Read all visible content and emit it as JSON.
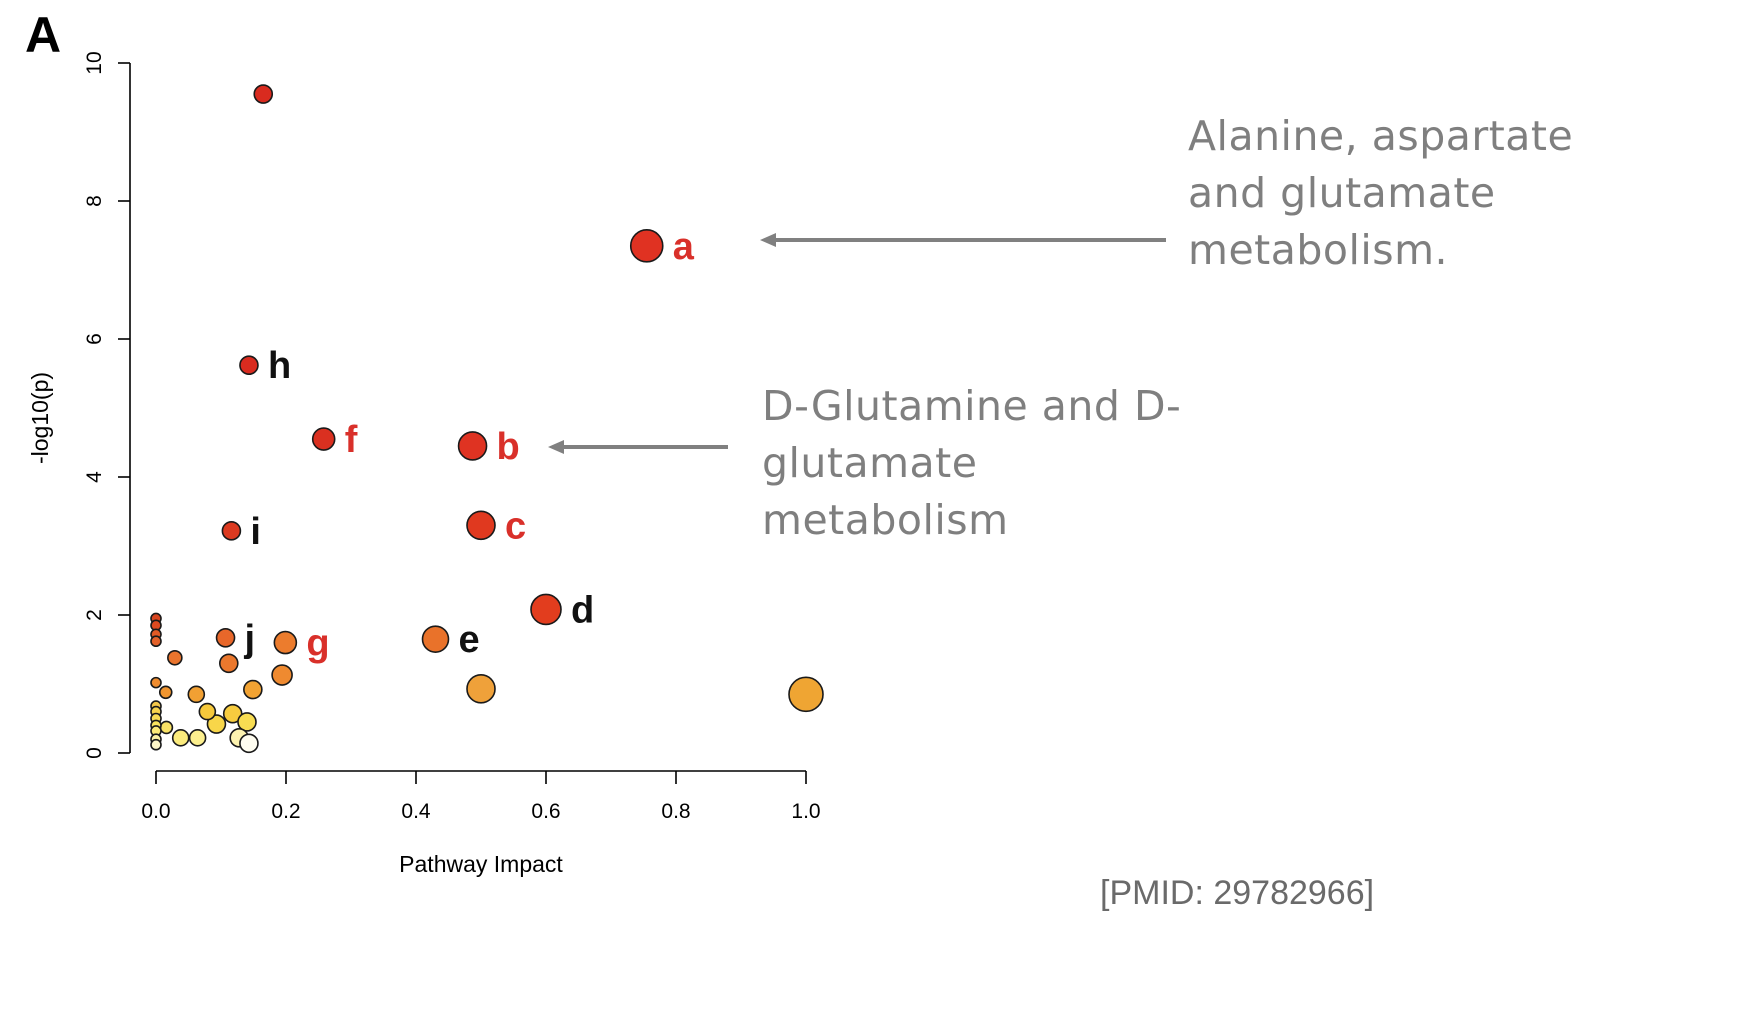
{
  "panel_label": "A",
  "annotations": [
    {
      "text_lines": [
        "Alanine, aspartate",
        "and glutamate",
        "metabolism."
      ]
    },
    {
      "text_lines": [
        "D-Glutamine and D-",
        "glutamate",
        "metabolism"
      ]
    }
  ],
  "citation": "[PMID: 29782966]",
  "colors": {
    "annotation_text": "#7f7f7f",
    "arrow": "#808080",
    "red_label": "#d9302a",
    "black_label": "#111111"
  },
  "chart_data": {
    "type": "scatter",
    "title": "",
    "xlabel": "Pathway Impact",
    "ylabel": "-log10(p)",
    "xlim": [
      0.0,
      1.0
    ],
    "ylim": [
      0,
      10
    ],
    "x_ticks": [
      "0.0",
      "0.2",
      "0.4",
      "0.6",
      "0.8",
      "1.0"
    ],
    "y_ticks": [
      "0",
      "2",
      "4",
      "6",
      "8",
      "10"
    ],
    "grid": false,
    "legend": "none",
    "points": [
      {
        "x": 0.165,
        "y": 9.55,
        "size": 9,
        "color": "#d92b1f",
        "label": ""
      },
      {
        "x": 0.755,
        "y": 7.35,
        "size": 16,
        "color": "#e03222",
        "label": "a",
        "label_color": "#d9302a"
      },
      {
        "x": 0.143,
        "y": 5.62,
        "size": 9,
        "color": "#d92b1f",
        "label": "h",
        "label_color": "#111111"
      },
      {
        "x": 0.258,
        "y": 4.55,
        "size": 11,
        "color": "#da3020",
        "label": "f",
        "label_color": "#d9302a"
      },
      {
        "x": 0.487,
        "y": 4.45,
        "size": 14,
        "color": "#df3322",
        "label": "b",
        "label_color": "#d9302a"
      },
      {
        "x": 0.5,
        "y": 3.3,
        "size": 14,
        "color": "#e0391f",
        "label": "c",
        "label_color": "#d9302a"
      },
      {
        "x": 0.116,
        "y": 3.22,
        "size": 9,
        "color": "#dc3a20",
        "label": "i",
        "label_color": "#111111"
      },
      {
        "x": 0.6,
        "y": 2.08,
        "size": 15,
        "color": "#e23d1e",
        "label": "d",
        "label_color": "#111111"
      },
      {
        "x": 0.43,
        "y": 1.65,
        "size": 13,
        "color": "#e9722a",
        "label": "e",
        "label_color": "#111111"
      },
      {
        "x": 0.107,
        "y": 1.67,
        "size": 9,
        "color": "#e8672a",
        "label": "j",
        "label_color": "#111111"
      },
      {
        "x": 0.199,
        "y": 1.6,
        "size": 11,
        "color": "#ec7c2d",
        "label": "g",
        "label_color": "#d9302a"
      },
      {
        "x": 0.5,
        "y": 0.93,
        "size": 14,
        "color": "#efa13a",
        "label": ""
      },
      {
        "x": 1.0,
        "y": 0.85,
        "size": 17,
        "color": "#efa533",
        "label": ""
      },
      {
        "x": 0.0,
        "y": 1.95,
        "size": 5,
        "color": "#d8451f",
        "label": ""
      },
      {
        "x": 0.0,
        "y": 1.85,
        "size": 5,
        "color": "#de4a20",
        "label": ""
      },
      {
        "x": 0.0,
        "y": 1.72,
        "size": 5,
        "color": "#e25a25",
        "label": ""
      },
      {
        "x": 0.0,
        "y": 1.62,
        "size": 5,
        "color": "#e4622a",
        "label": ""
      },
      {
        "x": 0.029,
        "y": 1.38,
        "size": 7,
        "color": "#e9742d",
        "label": ""
      },
      {
        "x": 0.112,
        "y": 1.3,
        "size": 9,
        "color": "#eb782d",
        "label": ""
      },
      {
        "x": 0.194,
        "y": 1.13,
        "size": 10,
        "color": "#ef8a30",
        "label": ""
      },
      {
        "x": 0.0,
        "y": 1.02,
        "size": 5,
        "color": "#ef8c2f",
        "label": ""
      },
      {
        "x": 0.015,
        "y": 0.88,
        "size": 6,
        "color": "#f0952f",
        "label": ""
      },
      {
        "x": 0.062,
        "y": 0.85,
        "size": 8,
        "color": "#f1a033",
        "label": ""
      },
      {
        "x": 0.149,
        "y": 0.92,
        "size": 9,
        "color": "#f2a333",
        "label": ""
      },
      {
        "x": 0.0,
        "y": 0.68,
        "size": 5,
        "color": "#f4c84a",
        "label": ""
      },
      {
        "x": 0.0,
        "y": 0.6,
        "size": 5,
        "color": "#f6d34d",
        "label": ""
      },
      {
        "x": 0.0,
        "y": 0.5,
        "size": 5,
        "color": "#f8dc55",
        "label": ""
      },
      {
        "x": 0.079,
        "y": 0.6,
        "size": 8,
        "color": "#f6c93c",
        "label": ""
      },
      {
        "x": 0.118,
        "y": 0.57,
        "size": 9,
        "color": "#f7cc3f",
        "label": ""
      },
      {
        "x": 0.093,
        "y": 0.42,
        "size": 9,
        "color": "#f8d649",
        "label": ""
      },
      {
        "x": 0.14,
        "y": 0.45,
        "size": 9,
        "color": "#f8dd52",
        "label": ""
      },
      {
        "x": 0.0,
        "y": 0.4,
        "size": 5,
        "color": "#f9e45f",
        "label": ""
      },
      {
        "x": 0.0,
        "y": 0.32,
        "size": 5,
        "color": "#fbe977",
        "label": ""
      },
      {
        "x": 0.016,
        "y": 0.37,
        "size": 6,
        "color": "#f9e266",
        "label": ""
      },
      {
        "x": 0.038,
        "y": 0.22,
        "size": 8,
        "color": "#fbeb7d",
        "label": ""
      },
      {
        "x": 0.064,
        "y": 0.22,
        "size": 8,
        "color": "#fcef8e",
        "label": ""
      },
      {
        "x": 0.0,
        "y": 0.2,
        "size": 5,
        "color": "#fcf1a4",
        "label": ""
      },
      {
        "x": 0.0,
        "y": 0.12,
        "size": 5,
        "color": "#fdf6c8",
        "label": ""
      },
      {
        "x": 0.128,
        "y": 0.22,
        "size": 9,
        "color": "#fdf3b0",
        "label": ""
      },
      {
        "x": 0.143,
        "y": 0.14,
        "size": 9,
        "color": "#fffdf0",
        "label": ""
      }
    ]
  }
}
